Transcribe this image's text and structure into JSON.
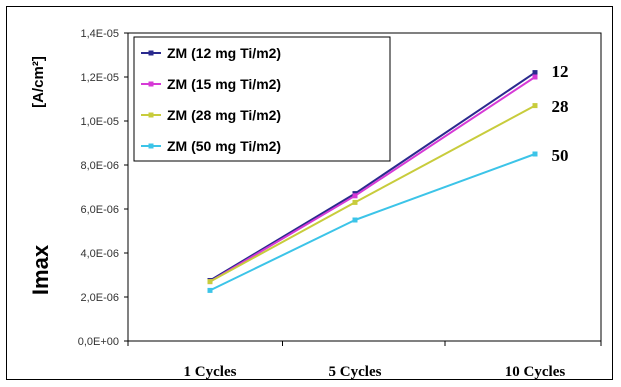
{
  "chart_data": {
    "type": "line",
    "categories": [
      "1 Cycles",
      "5 Cycles",
      "10 Cycles"
    ],
    "ylabel": "Imax",
    "ylabel_unit": "[A/cm²]",
    "ylim": [
      0,
      1.4e-05
    ],
    "yticks": [
      0,
      2e-06,
      4e-06,
      6e-06,
      8e-06,
      1e-05,
      1.2e-05,
      1.4e-05
    ],
    "ytick_labels": [
      "0,0E+00",
      "2,0E-06",
      "4,0E-06",
      "6,0E-06",
      "8,0E-06",
      "1,0E-05",
      "1,2E-05",
      "1,4E-05"
    ],
    "grid": false,
    "legend_position": "top-left",
    "series": [
      {
        "name": "ZM  (12 mg Ti/m2)",
        "values": [
          2.75e-06,
          6.7e-06,
          1.22e-05
        ],
        "color": "#2a2a8e",
        "end_label": "12"
      },
      {
        "name": "ZM  (15 mg Ti/m2)",
        "values": [
          2.7e-06,
          6.6e-06,
          1.2e-05
        ],
        "color": "#d63ad6",
        "end_label": ""
      },
      {
        "name": "ZM  (28 mg Ti/m2)",
        "values": [
          2.7e-06,
          6.3e-06,
          1.07e-05
        ],
        "color": "#c8cc3c",
        "end_label": "28"
      },
      {
        "name": "ZM  (50 mg Ti/m2)",
        "values": [
          2.3e-06,
          5.5e-06,
          8.5e-06
        ],
        "color": "#3cc4e8",
        "end_label": "50"
      }
    ]
  }
}
